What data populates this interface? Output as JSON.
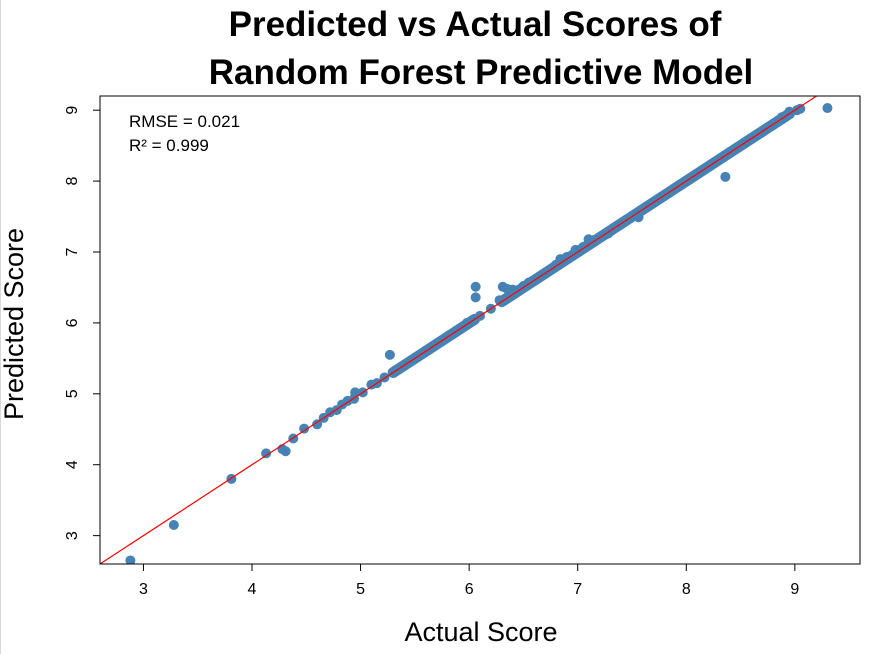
{
  "chart_data": {
    "type": "scatter",
    "title": "Predicted vs Actual Scores of",
    "subtitle": "Random Forest Predictive Model",
    "xlabel": "Actual Score",
    "ylabel": "Predicted Score",
    "xlim": [
      2.6,
      9.6
    ],
    "ylim": [
      2.6,
      9.2
    ],
    "xticks": [
      "3",
      "4",
      "5",
      "6",
      "7",
      "8",
      "9"
    ],
    "yticks": [
      "3",
      "4",
      "5",
      "6",
      "7",
      "8",
      "9"
    ],
    "grid": false,
    "legend": "none",
    "point_color": "#4682b4",
    "line_color": "#ff0000",
    "reference_line": {
      "slope": 1,
      "intercept": 0
    },
    "annotations": [
      "RMSE = 0.021",
      "R² = 0.999"
    ],
    "points": [
      {
        "x": 2.88,
        "y": 2.65
      },
      {
        "x": 3.28,
        "y": 3.15
      },
      {
        "x": 3.81,
        "y": 3.8
      },
      {
        "x": 4.13,
        "y": 4.16
      },
      {
        "x": 4.28,
        "y": 4.22
      },
      {
        "x": 4.31,
        "y": 4.19
      },
      {
        "x": 4.38,
        "y": 4.37
      },
      {
        "x": 4.48,
        "y": 4.51
      },
      {
        "x": 4.6,
        "y": 4.57
      },
      {
        "x": 4.66,
        "y": 4.66
      },
      {
        "x": 4.72,
        "y": 4.74
      },
      {
        "x": 4.78,
        "y": 4.77
      },
      {
        "x": 4.83,
        "y": 4.85
      },
      {
        "x": 4.88,
        "y": 4.9
      },
      {
        "x": 4.94,
        "y": 4.93
      },
      {
        "x": 4.95,
        "y": 5.02
      },
      {
        "x": 5.02,
        "y": 5.02
      },
      {
        "x": 5.1,
        "y": 5.13
      },
      {
        "x": 5.15,
        "y": 5.15
      },
      {
        "x": 5.22,
        "y": 5.23
      },
      {
        "x": 5.27,
        "y": 5.55
      },
      {
        "x": 5.32,
        "y": 5.33
      },
      {
        "x": 5.45,
        "y": 5.45
      },
      {
        "x": 5.6,
        "y": 5.61
      },
      {
        "x": 5.75,
        "y": 5.75
      },
      {
        "x": 5.9,
        "y": 5.9
      },
      {
        "x": 5.98,
        "y": 6.0
      },
      {
        "x": 6.06,
        "y": 6.51
      },
      {
        "x": 6.06,
        "y": 6.36
      },
      {
        "x": 6.1,
        "y": 6.1
      },
      {
        "x": 6.2,
        "y": 6.2
      },
      {
        "x": 6.28,
        "y": 6.32
      },
      {
        "x": 6.31,
        "y": 6.51
      },
      {
        "x": 6.35,
        "y": 6.48
      },
      {
        "x": 6.4,
        "y": 6.47
      },
      {
        "x": 6.45,
        "y": 6.46
      },
      {
        "x": 6.5,
        "y": 6.52
      },
      {
        "x": 6.55,
        "y": 6.57
      },
      {
        "x": 6.6,
        "y": 6.6
      },
      {
        "x": 6.7,
        "y": 6.7
      },
      {
        "x": 6.8,
        "y": 6.82
      },
      {
        "x": 6.84,
        "y": 6.9
      },
      {
        "x": 6.9,
        "y": 6.93
      },
      {
        "x": 6.98,
        "y": 7.03
      },
      {
        "x": 7.05,
        "y": 7.07
      },
      {
        "x": 7.1,
        "y": 7.18
      },
      {
        "x": 7.15,
        "y": 7.17
      },
      {
        "x": 7.28,
        "y": 7.26
      },
      {
        "x": 7.42,
        "y": 7.42
      },
      {
        "x": 7.52,
        "y": 7.51
      },
      {
        "x": 7.56,
        "y": 7.49
      },
      {
        "x": 7.62,
        "y": 7.62
      },
      {
        "x": 7.72,
        "y": 7.72
      },
      {
        "x": 7.83,
        "y": 7.83
      },
      {
        "x": 7.94,
        "y": 7.95
      },
      {
        "x": 8.05,
        "y": 8.05
      },
      {
        "x": 8.15,
        "y": 8.16
      },
      {
        "x": 8.25,
        "y": 8.25
      },
      {
        "x": 8.36,
        "y": 8.06
      },
      {
        "x": 8.4,
        "y": 8.41
      },
      {
        "x": 8.5,
        "y": 8.5
      },
      {
        "x": 8.6,
        "y": 8.6
      },
      {
        "x": 8.7,
        "y": 8.7
      },
      {
        "x": 8.8,
        "y": 8.8
      },
      {
        "x": 8.88,
        "y": 8.9
      },
      {
        "x": 8.95,
        "y": 8.98
      },
      {
        "x": 9.02,
        "y": 9.0
      },
      {
        "x": 9.05,
        "y": 9.02
      },
      {
        "x": 9.3,
        "y": 9.03
      }
    ],
    "dense_segments": [
      {
        "from": 5.3,
        "to": 6.05
      },
      {
        "from": 6.3,
        "to": 8.95
      }
    ]
  }
}
